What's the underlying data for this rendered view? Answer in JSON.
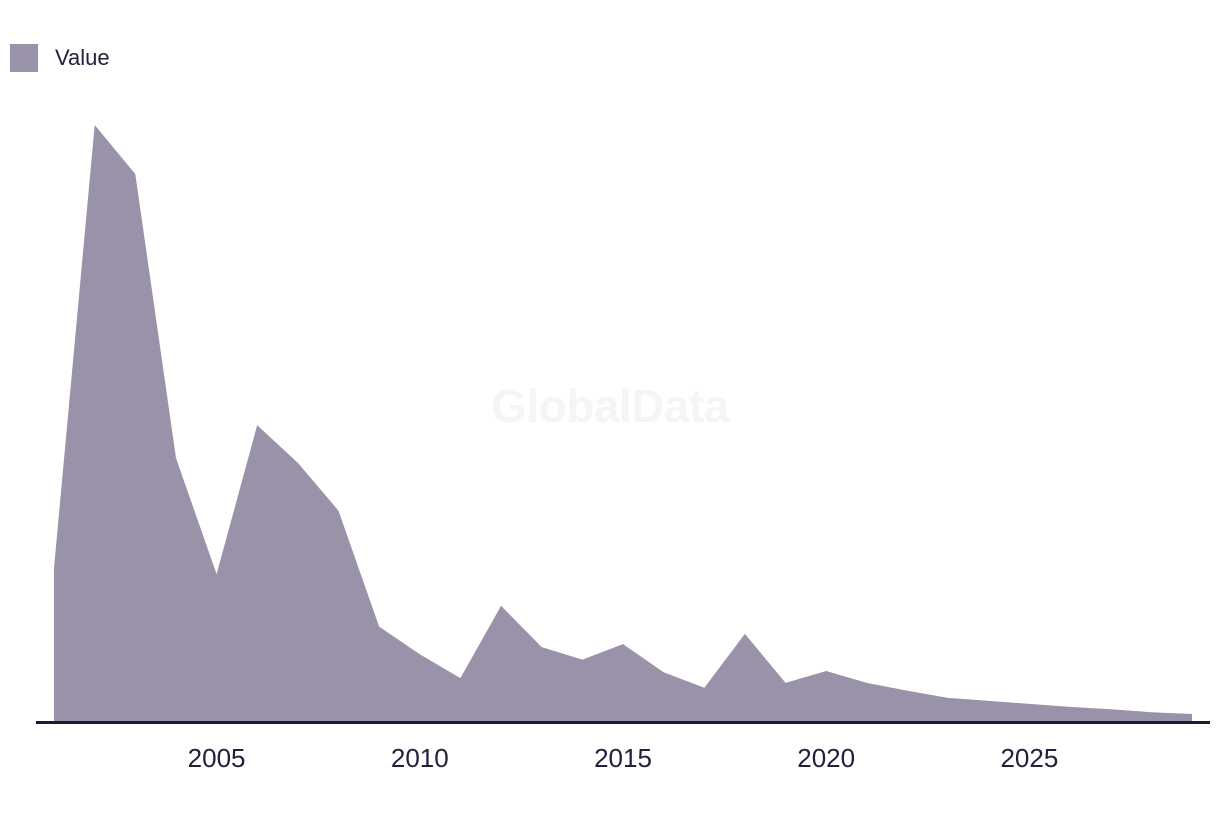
{
  "legend": {
    "label": "Value"
  },
  "watermark": {
    "text": "GlobalData"
  },
  "colors": {
    "area_fill": "#9a92a9",
    "axis_line": "#1b1b33",
    "tick_label": "#21213c",
    "watermark": "#f5f5f5",
    "background": "#ffffff"
  },
  "chart_data": {
    "type": "area",
    "title": "",
    "xlabel": "",
    "ylabel": "",
    "series_name": "Value",
    "x": [
      2001,
      2002,
      2003,
      2004,
      2005,
      2006,
      2007,
      2008,
      2009,
      2010,
      2011,
      2012,
      2013,
      2014,
      2015,
      2016,
      2017,
      2018,
      2019,
      2020,
      2021,
      2022,
      2023,
      2024,
      2025,
      2026,
      2027,
      2028,
      2029
    ],
    "values": [
      25.9,
      100,
      91.8,
      44.3,
      24.9,
      49.8,
      43.5,
      35.5,
      16.1,
      11.5,
      7.5,
      19.6,
      12.7,
      10.6,
      13.2,
      8.5,
      5.9,
      14.9,
      6.7,
      8.7,
      6.7,
      5.4,
      4.2,
      3.7,
      3.2,
      2.7,
      2.3,
      1.8,
      1.5
    ],
    "values_note": "y-axis unlabeled in source; values estimated from pixels, normalized so 2002 peak = 100",
    "x_tick_labels": [
      "2005",
      "2010",
      "2015",
      "2020",
      "2025"
    ],
    "xlim": [
      2001,
      2029
    ],
    "ylim": [
      0,
      100
    ],
    "grid": false,
    "y_axis_visible": false,
    "legend_position": "top-left"
  }
}
